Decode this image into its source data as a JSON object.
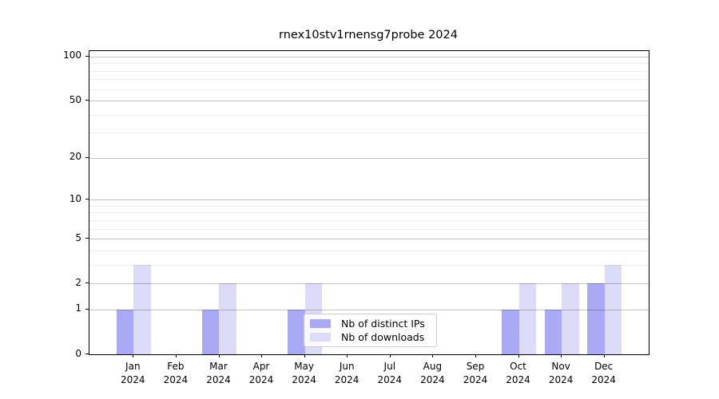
{
  "title": "rnex10stv1rnensg7probe 2024",
  "colors": {
    "distinct_ips": "#a9a9f6",
    "downloads": "#dcdcf8",
    "grid_major": "rgba(0,0,0,0.24)",
    "grid_minor": "rgba(0,0,0,0.08)",
    "spine": "#000000",
    "legend_border": "#cccccc",
    "legend_background": "rgba(255,255,255,0.8)"
  },
  "chart_data": {
    "type": "bar",
    "title": "rnex10stv1rnensg7probe 2024",
    "categories": [
      "Jan",
      "Feb",
      "Mar",
      "Apr",
      "May",
      "Jun",
      "Jul",
      "Aug",
      "Sep",
      "Oct",
      "Nov",
      "Dec"
    ],
    "year_label": "2024",
    "series": [
      {
        "name": "Nb of distinct IPs",
        "color": "#a9a9f6",
        "values": [
          1,
          0,
          1,
          0,
          1,
          0,
          0,
          0,
          0,
          1,
          1,
          2
        ]
      },
      {
        "name": "Nb of downloads",
        "color": "#dcdcf8",
        "values": [
          3,
          0,
          2,
          0,
          2,
          0,
          0,
          0,
          0,
          2,
          2,
          3
        ]
      }
    ],
    "y_axis": {
      "scale": "log10(1+v)",
      "tick_labels": [
        "0",
        "1",
        "2",
        "5",
        "10",
        "20",
        "50",
        "100"
      ],
      "major_ticks": [
        0,
        1,
        2,
        5,
        10,
        20,
        50,
        100
      ],
      "minor_ticks": [
        3,
        4,
        6,
        7,
        8,
        9,
        30,
        40,
        60,
        70,
        80,
        90
      ],
      "ylim": [
        0,
        110
      ]
    },
    "x_axis": {
      "tick_label_line1": [
        "Jan",
        "Feb",
        "Mar",
        "Apr",
        "May",
        "Jun",
        "Jul",
        "Aug",
        "Sep",
        "Oct",
        "Nov",
        "Dec"
      ],
      "tick_label_line2": "2024"
    },
    "grid": true,
    "legend": {
      "position": "inside lower center",
      "entries": [
        "Nb of distinct IPs",
        "Nb of downloads"
      ]
    }
  }
}
